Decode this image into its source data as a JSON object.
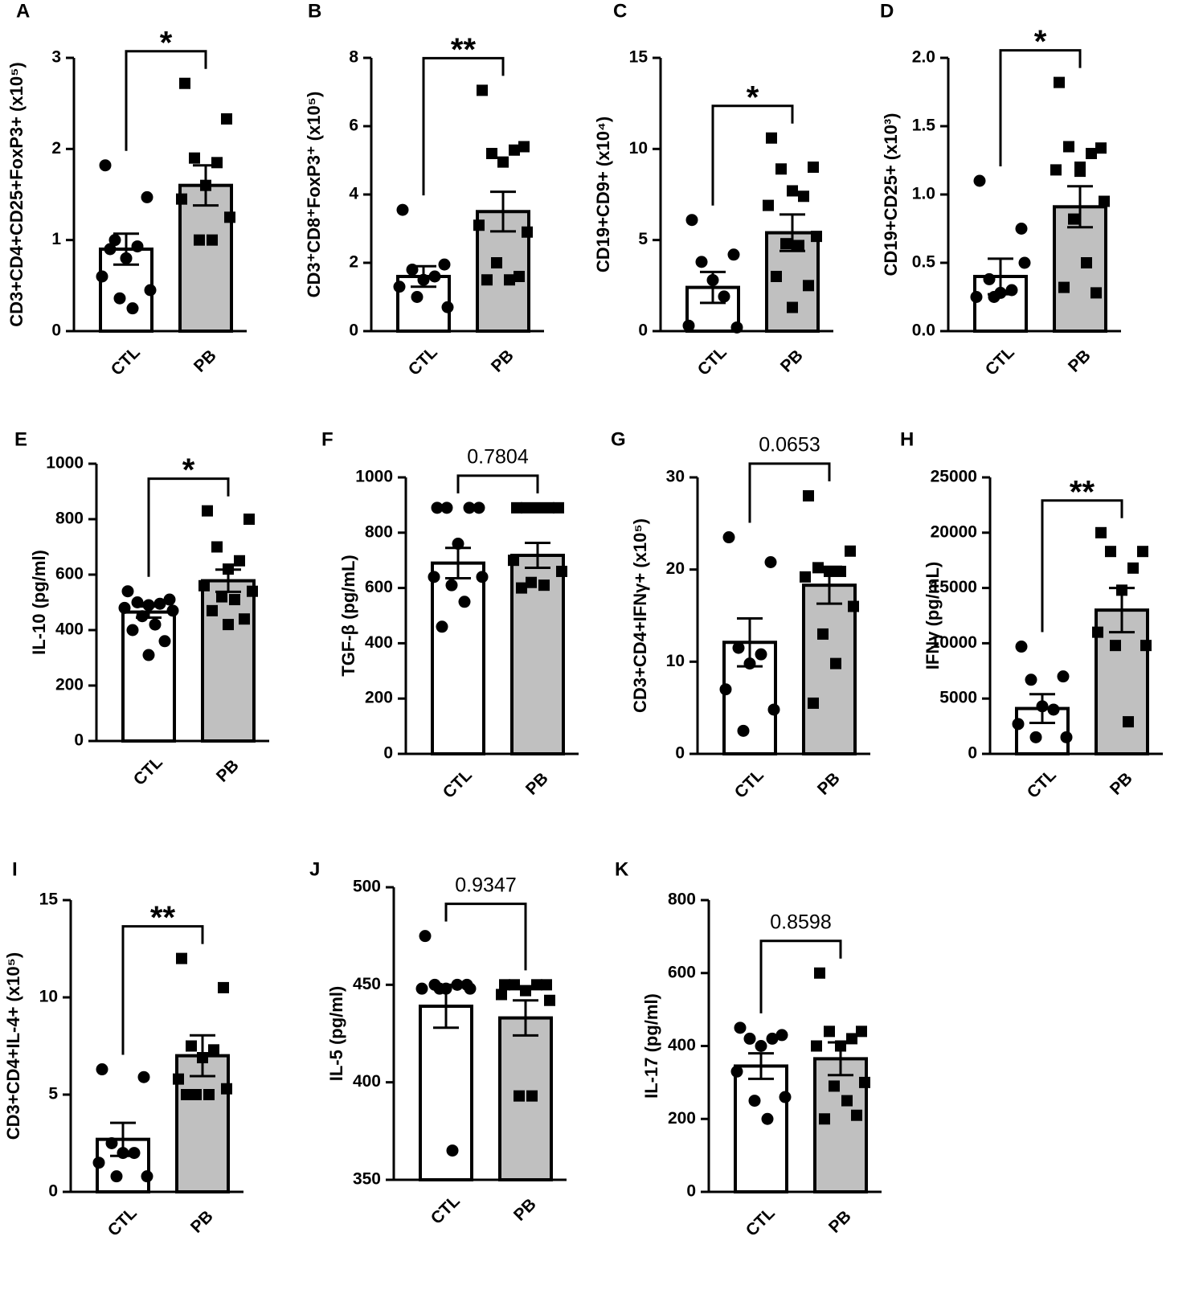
{
  "chart_data": [
    {
      "type": "bar",
      "label": "A",
      "ylabel": "CD3+CD4+CD25+FoxP3+ (x10⁵)",
      "categories": [
        "CTL",
        "PB"
      ],
      "colors": [
        "#ffffff",
        "#c0c0c0"
      ],
      "markers": [
        "circle",
        "square"
      ],
      "values": [
        0.9,
        1.6
      ],
      "errors": [
        0.17,
        0.22
      ],
      "points": [
        [
          1.82,
          1.47,
          1.0,
          0.93,
          0.8,
          0.6,
          0.45,
          0.36,
          0.25,
          0.9
        ],
        [
          2.72,
          2.33,
          1.9,
          1.85,
          1.6,
          1.45,
          1.25,
          1.0,
          1.0
        ]
      ],
      "annotation": "*",
      "ylim": [
        0,
        3
      ],
      "yticks": [
        0,
        1,
        2,
        3
      ]
    },
    {
      "type": "bar",
      "label": "B",
      "ylabel": "CD3⁺CD8⁺FoxP3⁺ (x10⁵)",
      "categories": [
        "CTL",
        "PB"
      ],
      "colors": [
        "#ffffff",
        "#c0c0c0"
      ],
      "markers": [
        "circle",
        "square"
      ],
      "values": [
        1.6,
        3.5
      ],
      "errors": [
        0.3,
        0.58
      ],
      "points": [
        [
          3.55,
          1.95,
          1.8,
          1.6,
          1.5,
          1.3,
          0.7,
          1.0
        ],
        [
          7.05,
          5.4,
          5.2,
          5.3,
          4.95,
          3.1,
          2.9,
          2.0,
          1.5,
          1.5,
          1.6
        ]
      ],
      "annotation": "**",
      "ylim": [
        0,
        8
      ],
      "yticks": [
        0,
        2,
        4,
        6,
        8
      ]
    },
    {
      "type": "bar",
      "label": "C",
      "ylabel": "CD19+CD9+ (x10⁴)",
      "categories": [
        "CTL",
        "PB"
      ],
      "colors": [
        "#ffffff",
        "#c0c0c0"
      ],
      "markers": [
        "circle",
        "square"
      ],
      "values": [
        2.4,
        5.4
      ],
      "errors": [
        0.85,
        1.0
      ],
      "points": [
        [
          6.1,
          4.2,
          3.8,
          1.9,
          2.8,
          0.3,
          0.2
        ],
        [
          10.6,
          9.0,
          8.9,
          7.4,
          7.7,
          6.9,
          5.2,
          4.8,
          4.7,
          3.0,
          2.5,
          1.3
        ]
      ],
      "annotation": "*",
      "ylim": [
        0,
        15
      ],
      "yticks": [
        0,
        5,
        10,
        15
      ]
    },
    {
      "type": "bar",
      "label": "D",
      "ylabel": "CD19+CD25+ (x10³)",
      "categories": [
        "CTL",
        "PB"
      ],
      "colors": [
        "#ffffff",
        "#c0c0c0"
      ],
      "markers": [
        "circle",
        "square"
      ],
      "values": [
        0.4,
        0.91
      ],
      "errors": [
        0.13,
        0.15
      ],
      "points": [
        [
          1.1,
          0.75,
          0.38,
          0.3,
          0.28,
          0.25,
          0.5,
          0.25
        ],
        [
          1.82,
          1.34,
          1.35,
          1.3,
          1.2,
          1.18,
          0.95,
          0.82,
          0.5,
          0.32,
          0.28,
          1.17
        ]
      ],
      "annotation": "*",
      "ylim": [
        0,
        2
      ],
      "yticks": [
        {
          "value": 0,
          "label": "0.0"
        },
        0.5,
        {
          "value": 1,
          "label": "1.0"
        },
        1.5,
        {
          "value": 2,
          "label": "2.0"
        }
      ]
    },
    {
      "type": "bar",
      "label": "E",
      "ylabel": "IL-10 (pg/ml)",
      "categories": [
        "CTL",
        "PB"
      ],
      "colors": [
        "#ffffff",
        "#c0c0c0"
      ],
      "markers": [
        "circle",
        "square"
      ],
      "values": [
        465,
        578
      ],
      "errors": [
        20,
        40
      ],
      "points": [
        [
          540,
          510,
          500,
          495,
          490,
          480,
          470,
          450,
          420,
          400,
          360,
          310
        ],
        [
          830,
          800,
          700,
          650,
          620,
          560,
          540,
          520,
          510,
          470,
          440,
          420
        ]
      ],
      "annotation": "*",
      "ylim": [
        0,
        1000
      ],
      "yticks": [
        0,
        200,
        400,
        600,
        800,
        1000
      ]
    },
    {
      "type": "bar",
      "label": "F",
      "ylabel": "TGF-β (pg/mL)",
      "categories": [
        "CTL",
        "PB"
      ],
      "colors": [
        "#ffffff",
        "#c0c0c0"
      ],
      "markers": [
        "circle",
        "square"
      ],
      "values": [
        690,
        718
      ],
      "errors": [
        55,
        45
      ],
      "points": [
        [
          890,
          890,
          890,
          890,
          760,
          640,
          640,
          610,
          550,
          460
        ],
        [
          890,
          890,
          890,
          890,
          890,
          700,
          660,
          620,
          610,
          600
        ]
      ],
      "annotation": "0.7804",
      "ylim": [
        0,
        1000
      ],
      "yticks": [
        0,
        200,
        400,
        600,
        800,
        1000
      ]
    },
    {
      "type": "bar",
      "label": "G",
      "ylabel": "CD3+CD4+IFNγ+ (x10⁵)",
      "categories": [
        "CTL",
        "PB"
      ],
      "colors": [
        "#ffffff",
        "#c0c0c0"
      ],
      "markers": [
        "circle",
        "square"
      ],
      "values": [
        12.1,
        18.3
      ],
      "errors": [
        2.6,
        2.0
      ],
      "points": [
        [
          23.5,
          20.8,
          11.5,
          10.8,
          9.8,
          7,
          4.8,
          2.5
        ],
        [
          28,
          22,
          20.2,
          19.8,
          19.8,
          19.2,
          16,
          13,
          9.8,
          5.5
        ]
      ],
      "annotation": "0.0653",
      "ylim": [
        0,
        30
      ],
      "yticks": [
        0,
        10,
        20,
        30
      ]
    },
    {
      "type": "bar",
      "label": "H",
      "ylabel": "IFNγ (pg/mL)",
      "categories": [
        "CTL",
        "PB"
      ],
      "colors": [
        "#ffffff",
        "#c0c0c0"
      ],
      "markers": [
        "circle",
        "square"
      ],
      "values": [
        4100,
        13000
      ],
      "errors": [
        1300,
        2000
      ],
      "points": [
        [
          9700,
          7000,
          6700,
          4000,
          4300,
          2700,
          1500,
          1500
        ],
        [
          20000,
          18300,
          18300,
          16800,
          14800,
          11000,
          9800,
          9800,
          2900
        ]
      ],
      "annotation": "**",
      "ylim": [
        0,
        25000
      ],
      "yticks": [
        0,
        5000,
        10000,
        15000,
        20000,
        25000
      ]
    },
    {
      "type": "bar",
      "label": "I",
      "ylabel": "CD3+CD4+IL-4+ (x10⁵)",
      "categories": [
        "CTL",
        "PB"
      ],
      "colors": [
        "#ffffff",
        "#c0c0c0"
      ],
      "markers": [
        "circle",
        "square"
      ],
      "values": [
        2.7,
        7.0
      ],
      "errors": [
        0.85,
        1.05
      ],
      "points": [
        [
          6.3,
          5.9,
          2.5,
          2.0,
          2.0,
          1.5,
          0.8,
          0.8
        ],
        [
          12,
          10.5,
          7.5,
          7.3,
          6.9,
          5.8,
          5.3,
          5.0,
          5.0,
          5.0
        ]
      ],
      "annotation": "**",
      "ylim": [
        0,
        15
      ],
      "yticks": [
        0,
        5,
        10,
        15
      ]
    },
    {
      "type": "bar",
      "label": "J",
      "ylabel": "IL-5 (pg/ml)",
      "categories": [
        "CTL",
        "PB"
      ],
      "colors": [
        "#ffffff",
        "#c0c0c0"
      ],
      "markers": [
        "circle",
        "square"
      ],
      "values": [
        439,
        433
      ],
      "errors": [
        11,
        9
      ],
      "points": [
        [
          475,
          450,
          450,
          450,
          448,
          448,
          448,
          448,
          365
        ],
        [
          450,
          450,
          450,
          450,
          447,
          445,
          442,
          393,
          393
        ]
      ],
      "annotation": "0.9347",
      "ylim": [
        350,
        500
      ],
      "yticks": [
        350,
        400,
        450,
        500
      ]
    },
    {
      "type": "bar",
      "label": "K",
      "ylabel": "IL-17 (pg/ml)",
      "categories": [
        "CTL",
        "PB"
      ],
      "colors": [
        "#ffffff",
        "#c0c0c0"
      ],
      "markers": [
        "circle",
        "square"
      ],
      "values": [
        345,
        365
      ],
      "errors": [
        35,
        45
      ],
      "points": [
        [
          450,
          430,
          420,
          420,
          400,
          330,
          260,
          250,
          200
        ],
        [
          600,
          440,
          440,
          420,
          400,
          400,
          300,
          290,
          250,
          200,
          210
        ]
      ],
      "annotation": "0.8598",
      "ylim": [
        0,
        800
      ],
      "yticks": [
        0,
        200,
        400,
        600,
        800
      ]
    }
  ]
}
